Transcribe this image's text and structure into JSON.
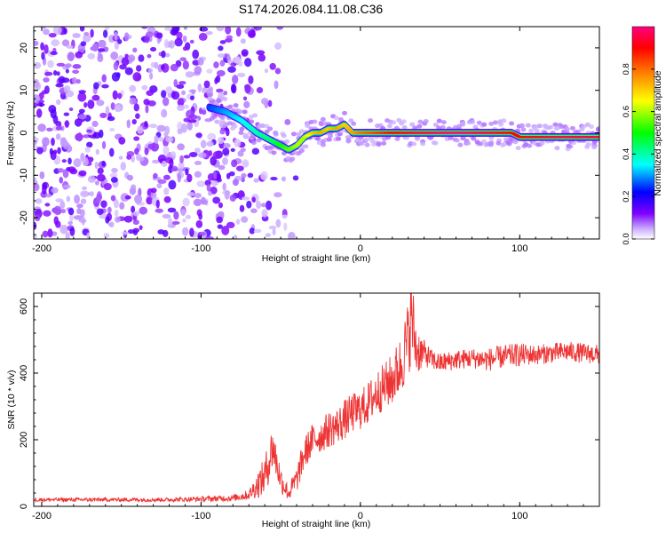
{
  "title": "S174.2026.084.11.08.C36",
  "chart_data": [
    {
      "type": "heatmap",
      "title": "S174.2026.084.11.08.C36",
      "xlabel": "Height of straight line (km)",
      "ylabel": "Frequency (Hz)",
      "xlim": [
        -205,
        150
      ],
      "ylim": [
        -25,
        25
      ],
      "x_ticks": [
        -200,
        -100,
        0,
        100
      ],
      "y_ticks": [
        -20,
        -10,
        0,
        10,
        20
      ],
      "colorbar": {
        "label": "Normalized spectral amplitude",
        "range": [
          0,
          1
        ],
        "ticks": [
          "0.0",
          "0.2",
          "0.4",
          "0.6",
          "0.8"
        ],
        "colors": [
          "#ffffff",
          "#c8a8ff",
          "#7f00ff",
          "#0000ff",
          "#00ffff",
          "#00ff00",
          "#ffff00",
          "#ff8000",
          "#ff0000",
          "#ff0080"
        ]
      },
      "ridge": {
        "x": [
          -95,
          -85,
          -75,
          -65,
          -55,
          -45,
          -40,
          -35,
          -30,
          -25,
          -20,
          -15,
          -10,
          -5,
          0,
          10,
          20,
          40,
          60,
          80,
          95,
          100,
          120,
          150
        ],
        "y": [
          6,
          5,
          3,
          0,
          -2,
          -4,
          -3,
          -1,
          0,
          0,
          1,
          1,
          2,
          0,
          0,
          0,
          0,
          0,
          0,
          0,
          0,
          -1,
          -1,
          -1
        ],
        "amplitude": [
          0.25,
          0.3,
          0.35,
          0.4,
          0.45,
          0.55,
          0.6,
          0.6,
          0.7,
          0.75,
          0.7,
          0.75,
          0.7,
          0.75,
          0.8,
          0.85,
          0.9,
          0.95,
          1.0,
          0.95,
          0.9,
          0.9,
          0.95,
          0.95
        ]
      },
      "noise_region_x": [
        -205,
        -50
      ]
    },
    {
      "type": "line",
      "xlabel": "Height of straight line (km)",
      "ylabel": "SNR (10 * v/v)",
      "xlim": [
        -205,
        150
      ],
      "ylim": [
        0,
        640
      ],
      "x_ticks": [
        -200,
        -100,
        0,
        100
      ],
      "y_ticks": [
        0,
        200,
        400,
        600
      ],
      "series": [
        {
          "name": "SNR",
          "color": "#ee3333",
          "x": [
            -205,
            -180,
            -150,
            -120,
            -100,
            -80,
            -70,
            -60,
            -55,
            -50,
            -45,
            -40,
            -35,
            -30,
            -25,
            -20,
            -15,
            -10,
            -5,
            0,
            5,
            10,
            15,
            20,
            25,
            30,
            32,
            35,
            40,
            45,
            50,
            60,
            70,
            80,
            90,
            100,
            110,
            120,
            130,
            140,
            150
          ],
          "y": [
            20,
            20,
            20,
            20,
            22,
            25,
            35,
            90,
            180,
            80,
            40,
            80,
            160,
            200,
            210,
            230,
            240,
            260,
            280,
            290,
            310,
            340,
            360,
            380,
            420,
            500,
            580,
            470,
            460,
            440,
            430,
            440,
            445,
            440,
            450,
            455,
            455,
            460,
            465,
            460,
            455
          ],
          "noise": [
            6,
            6,
            6,
            6,
            8,
            10,
            15,
            60,
            70,
            40,
            25,
            40,
            50,
            50,
            50,
            55,
            55,
            60,
            60,
            60,
            65,
            70,
            70,
            80,
            90,
            120,
            140,
            80,
            40,
            30,
            30,
            30,
            30,
            35,
            35,
            35,
            30,
            30,
            30,
            30,
            30
          ]
        }
      ]
    }
  ]
}
